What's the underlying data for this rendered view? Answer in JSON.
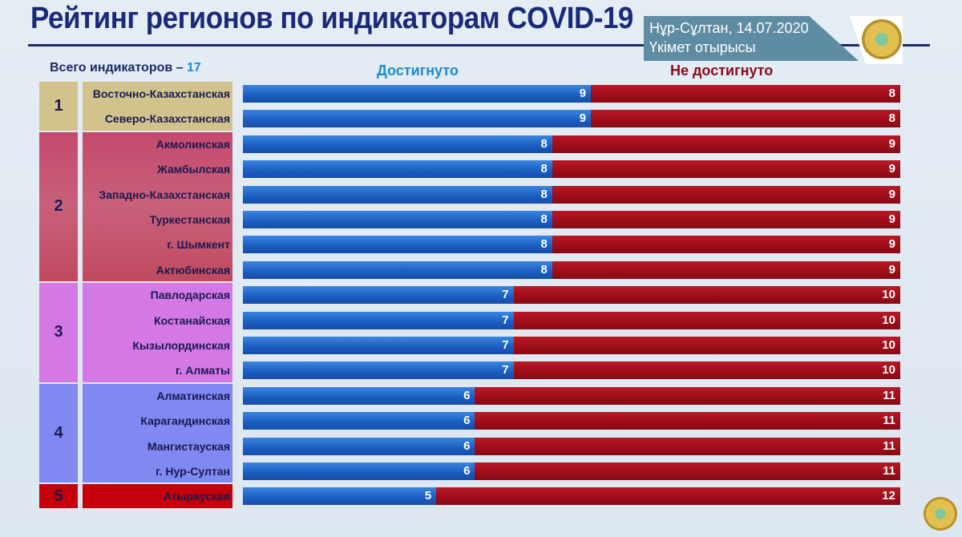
{
  "chart_data": {
    "type": "bar",
    "orientation": "horizontal",
    "stacked": true,
    "title": "Рейтинг регионов по индикаторам COVID-19",
    "total_label": "Всего индикаторов – ",
    "total_value": "17",
    "xlim": [
      0,
      17
    ],
    "series": [
      {
        "name": "Достигнуто",
        "color": "#1a5cc0",
        "values": [
          9,
          9,
          8,
          8,
          8,
          8,
          8,
          8,
          7,
          7,
          7,
          7,
          6,
          6,
          6,
          6,
          5
        ]
      },
      {
        "name": "Не достигнуто",
        "color": "#9c0c18",
        "values": [
          8,
          8,
          9,
          9,
          9,
          9,
          9,
          9,
          10,
          10,
          10,
          10,
          11,
          11,
          11,
          11,
          12
        ]
      }
    ],
    "categories": [
      "Восточно-Казахстанская",
      "Северо-Казахстанская",
      "Акмолинская",
      "Жамбылская",
      "Западно-Казахстанская",
      "Туркестанская",
      "г. Шымкент",
      "Актюбинская",
      "Павлодарская",
      "Костанайская",
      "Кызылординская",
      "г. Алматы",
      "Алматинская",
      "Карагандинская",
      "Мангистауская",
      "г. Нур-Султан",
      "Атырауская"
    ],
    "groups": [
      {
        "rank": "1",
        "start": 0,
        "count": 2,
        "color": "#d2c38c"
      },
      {
        "rank": "2",
        "start": 2,
        "count": 6,
        "color": "#c65a78"
      },
      {
        "rank": "3",
        "start": 8,
        "count": 4,
        "color": "#d478e6"
      },
      {
        "rank": "4",
        "start": 12,
        "count": 4,
        "color": "#8088f2"
      },
      {
        "rank": "5",
        "start": 16,
        "count": 1,
        "color": "#c40008"
      }
    ]
  },
  "header": {
    "date_line": "Нұр-Сұлтан, 14.07.2020",
    "event_line": "Үкімет отырысы"
  }
}
